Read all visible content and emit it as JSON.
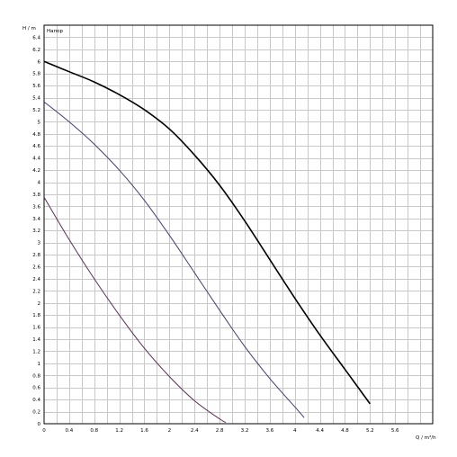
{
  "chart_data": {
    "type": "line",
    "title": "",
    "ylabel": "H / m",
    "ylabel_suffix": "Напор",
    "xlabel": "Q / m³/h",
    "xlim": [
      0,
      6.2
    ],
    "ylim": [
      0,
      6.6
    ],
    "grid": true,
    "x_ticks": [
      "0",
      "0.4",
      "0.8",
      "1.2",
      "1.6",
      "2",
      "2.4",
      "2.8",
      "3.2",
      "3.6",
      "4",
      "4.4",
      "4.8",
      "5.2",
      "5.6"
    ],
    "y_ticks": [
      "0",
      "0.2",
      "0.4",
      "0.6",
      "0.8",
      "1",
      "1.2",
      "1.4",
      "1.6",
      "1.8",
      "2",
      "2.2",
      "2.4",
      "2.6",
      "2.8",
      "3",
      "3.2",
      "3.4",
      "3.6",
      "3.8",
      "4",
      "4.2",
      "4.4",
      "4.6",
      "4.8",
      "5",
      "5.2",
      "5.4",
      "5.6",
      "5.8",
      "6",
      "6.2",
      "6.4"
    ],
    "series": [
      {
        "color": "#000000",
        "x": [
          0,
          0.4,
          0.8,
          1.2,
          1.6,
          2.0,
          2.4,
          2.8,
          3.2,
          3.6,
          4.0,
          4.4,
          4.8,
          5.2,
          5.6
        ],
        "y": [
          6.0,
          5.83,
          5.66,
          5.45,
          5.2,
          4.88,
          4.45,
          3.95,
          3.36,
          2.72,
          2.08,
          1.47,
          0.9,
          0.33,
          -0.2
        ]
      },
      {
        "color": "#4a3a6e",
        "x": [
          0,
          0.4,
          0.8,
          1.2,
          1.6,
          2.0,
          2.4,
          2.8,
          3.2,
          3.6,
          4.0,
          4.15
        ],
        "y": [
          5.33,
          5.0,
          4.63,
          4.2,
          3.7,
          3.12,
          2.5,
          1.88,
          1.28,
          0.75,
          0.28,
          0.1
        ]
      },
      {
        "color": "#5a2e55",
        "x": [
          0,
          0.4,
          0.8,
          1.2,
          1.6,
          2.0,
          2.4,
          2.8,
          2.9
        ],
        "y": [
          3.75,
          3.05,
          2.4,
          1.8,
          1.25,
          0.78,
          0.38,
          0.08,
          0.02
        ]
      }
    ]
  }
}
